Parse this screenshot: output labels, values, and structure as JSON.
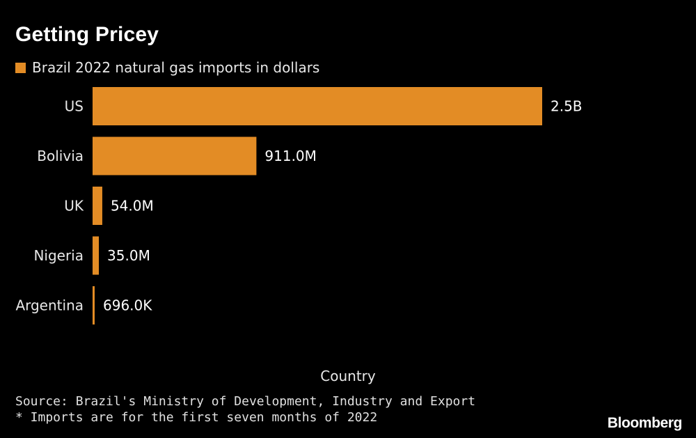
{
  "title": "Getting Pricey",
  "legend": {
    "label": "Brazil 2022 natural gas imports in dollars",
    "color": "#e38c25"
  },
  "chart_data": {
    "type": "bar",
    "orientation": "horizontal",
    "title": "Getting Pricey",
    "xlabel": "Country",
    "ylabel": "",
    "categories": [
      "US",
      "Bolivia",
      "UK",
      "Nigeria",
      "Argentina"
    ],
    "series": [
      {
        "name": "Brazil 2022 natural gas imports in dollars",
        "values": [
          2500000000,
          911000000,
          54000000,
          35000000,
          696000
        ],
        "data_labels": [
          "2.5B",
          "911.0M",
          "54.0M",
          "35.0M",
          "696.0K"
        ],
        "color": "#e38c25"
      }
    ],
    "xlim": [
      0,
      2500000000
    ],
    "grid": false,
    "legend_position": "top-left"
  },
  "axis_title": "Country",
  "source": "Source: Brazil's Ministry of Development, Industry and Export",
  "note": "* Imports are for the first seven months of 2022",
  "brand": "Bloomberg"
}
